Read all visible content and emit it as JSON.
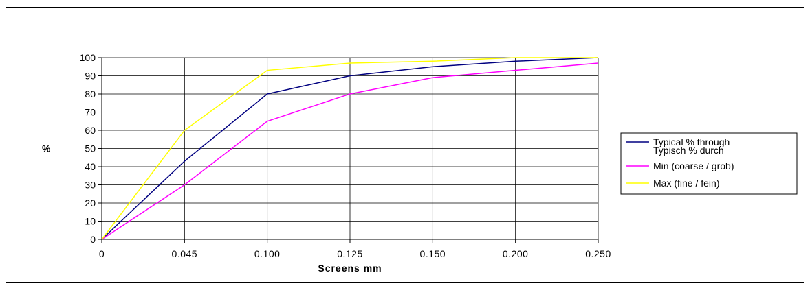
{
  "chart_data": {
    "type": "line",
    "title": "",
    "xlabel": "Screens mm",
    "ylabel": "%",
    "categories": [
      "0",
      "0.045",
      "0.100",
      "0.125",
      "0.150",
      "0.200",
      "0.250"
    ],
    "ylim": [
      0,
      100
    ],
    "y_ticks": [
      0,
      10,
      20,
      30,
      40,
      50,
      60,
      70,
      80,
      90,
      100
    ],
    "grid": true,
    "legend_position": "right",
    "series": [
      {
        "name": "Typical % through Typisch % durch",
        "legend_lines": [
          "Typical % through",
          "Typisch % durch"
        ],
        "color": "#000080",
        "values": [
          0,
          43,
          80,
          90,
          95,
          98,
          100
        ]
      },
      {
        "name": "Min (coarse / grob)",
        "legend_lines": [
          "Min (coarse / grob)"
        ],
        "color": "#ff00ff",
        "values": [
          0,
          30,
          65,
          80,
          89,
          93,
          97
        ]
      },
      {
        "name": "Max (fine / fein)",
        "legend_lines": [
          "Max (fine / fein)"
        ],
        "color": "#ffff00",
        "values": [
          0,
          60,
          93,
          97,
          98,
          100,
          100
        ]
      }
    ]
  }
}
